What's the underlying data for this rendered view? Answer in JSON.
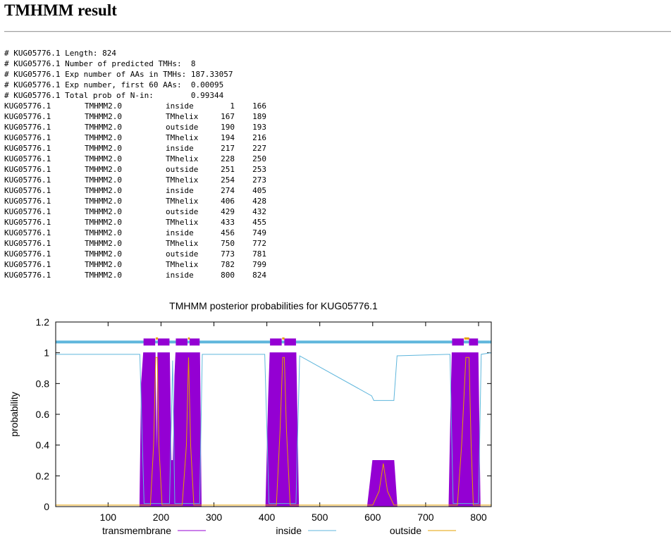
{
  "page": {
    "title": "TMHMM result"
  },
  "summary_lines": [
    "# KUG05776.1 Length: 824",
    "# KUG05776.1 Number of predicted TMHs:  8",
    "# KUG05776.1 Exp number of AAs in TMHs: 187.33057",
    "# KUG05776.1 Exp number, first 60 AAs:  0.00095",
    "# KUG05776.1 Total prob of N-in:        0.99344"
  ],
  "topology_rows": [
    [
      "KUG05776.1",
      "TMHMM2.0",
      "inside",
      "1",
      "166"
    ],
    [
      "KUG05776.1",
      "TMHMM2.0",
      "TMhelix",
      "167",
      "189"
    ],
    [
      "KUG05776.1",
      "TMHMM2.0",
      "outside",
      "190",
      "193"
    ],
    [
      "KUG05776.1",
      "TMHMM2.0",
      "TMhelix",
      "194",
      "216"
    ],
    [
      "KUG05776.1",
      "TMHMM2.0",
      "inside",
      "217",
      "227"
    ],
    [
      "KUG05776.1",
      "TMHMM2.0",
      "TMhelix",
      "228",
      "250"
    ],
    [
      "KUG05776.1",
      "TMHMM2.0",
      "outside",
      "251",
      "253"
    ],
    [
      "KUG05776.1",
      "TMHMM2.0",
      "TMhelix",
      "254",
      "273"
    ],
    [
      "KUG05776.1",
      "TMHMM2.0",
      "inside",
      "274",
      "405"
    ],
    [
      "KUG05776.1",
      "TMHMM2.0",
      "TMhelix",
      "406",
      "428"
    ],
    [
      "KUG05776.1",
      "TMHMM2.0",
      "outside",
      "429",
      "432"
    ],
    [
      "KUG05776.1",
      "TMHMM2.0",
      "TMhelix",
      "433",
      "455"
    ],
    [
      "KUG05776.1",
      "TMHMM2.0",
      "inside",
      "456",
      "749"
    ],
    [
      "KUG05776.1",
      "TMHMM2.0",
      "TMhelix",
      "750",
      "772"
    ],
    [
      "KUG05776.1",
      "TMHMM2.0",
      "outside",
      "773",
      "781"
    ],
    [
      "KUG05776.1",
      "TMHMM2.0",
      "TMhelix",
      "782",
      "799"
    ],
    [
      "KUG05776.1",
      "TMHMM2.0",
      "inside",
      "800",
      "824"
    ]
  ],
  "chart_data": {
    "type": "line",
    "title": "TMHMM posterior probabilities for KUG05776.1",
    "xlabel": "",
    "ylabel": "probability",
    "xlim": [
      1,
      824
    ],
    "ylim": [
      0,
      1.2
    ],
    "xticks": [
      100,
      200,
      300,
      400,
      500,
      600,
      700,
      800
    ],
    "yticks": [
      0,
      0.2,
      0.4,
      0.6,
      0.8,
      1,
      1.2
    ],
    "ytick_labels": [
      "0",
      "0.2",
      "0.4",
      "0.6",
      "0.8",
      "1",
      "1.2"
    ],
    "grid": false,
    "legend_position": "bottom",
    "series": [
      {
        "name": "transmembrane",
        "color": "#9400d3",
        "style": "filled",
        "x": [
          1,
          160,
          163,
          167,
          189,
          192,
          194,
          216,
          219,
          223,
          226,
          228,
          250,
          254,
          273,
          276,
          398,
          403,
          406,
          428,
          433,
          455,
          460,
          590,
          600,
          604,
          640,
          646,
          744,
          748,
          750,
          772,
          782,
          799,
          803,
          824
        ],
        "y": [
          0,
          0,
          0.8,
          1,
          1,
          0.15,
          1,
          1,
          0.3,
          0.3,
          0.85,
          1,
          1,
          1,
          1,
          0,
          0,
          0.7,
          1,
          1,
          1,
          1,
          0,
          0,
          0.3,
          0.3,
          0.3,
          0,
          0,
          0.7,
          1,
          1,
          1,
          1,
          0,
          0
        ]
      },
      {
        "name": "inside",
        "color": "#5fb6dc",
        "x": [
          1,
          160,
          168,
          188,
          194,
          216,
          222,
          226,
          250,
          254,
          273,
          278,
          396,
          404,
          428,
          432,
          455,
          462,
          598,
          602,
          640,
          646,
          746,
          752,
          800,
          805,
          824
        ],
        "y": [
          0.99,
          0.99,
          0.02,
          0.02,
          0.02,
          0.02,
          0.95,
          0.02,
          0.02,
          0.02,
          0.02,
          0.99,
          0.99,
          0.02,
          0.02,
          0.02,
          0.02,
          0.98,
          0.72,
          0.69,
          0.69,
          0.98,
          0.99,
          0.02,
          0.02,
          0.99,
          1.0
        ]
      },
      {
        "name": "outside",
        "color": "#e6a000",
        "x": [
          1,
          180,
          186,
          190,
          193,
          196,
          202,
          240,
          248,
          252,
          256,
          262,
          418,
          425,
          430,
          433,
          437,
          444,
          600,
          612,
          620,
          628,
          640,
          760,
          768,
          776,
          782,
          786,
          790,
          824
        ],
        "y": [
          0.01,
          0.01,
          0.4,
          0.97,
          0.97,
          0.4,
          0.01,
          0.01,
          0.4,
          0.97,
          0.4,
          0.01,
          0.01,
          0.5,
          0.97,
          0.97,
          0.5,
          0.01,
          0.01,
          0.1,
          0.28,
          0.1,
          0.01,
          0.01,
          0.4,
          0.97,
          0.97,
          0.4,
          0.01,
          0.01
        ]
      }
    ],
    "topology_bar": {
      "y": 1.07,
      "inside_color": "#5fb6dc",
      "helix_color": "#9400d3",
      "outside_color": "#e6a000",
      "helices": [
        [
          167,
          189
        ],
        [
          194,
          216
        ],
        [
          228,
          250
        ],
        [
          254,
          273
        ],
        [
          406,
          428
        ],
        [
          433,
          455
        ],
        [
          750,
          772
        ],
        [
          782,
          799
        ]
      ],
      "outside": [
        [
          190,
          193
        ],
        [
          251,
          253
        ],
        [
          429,
          432
        ],
        [
          773,
          781
        ]
      ]
    }
  }
}
